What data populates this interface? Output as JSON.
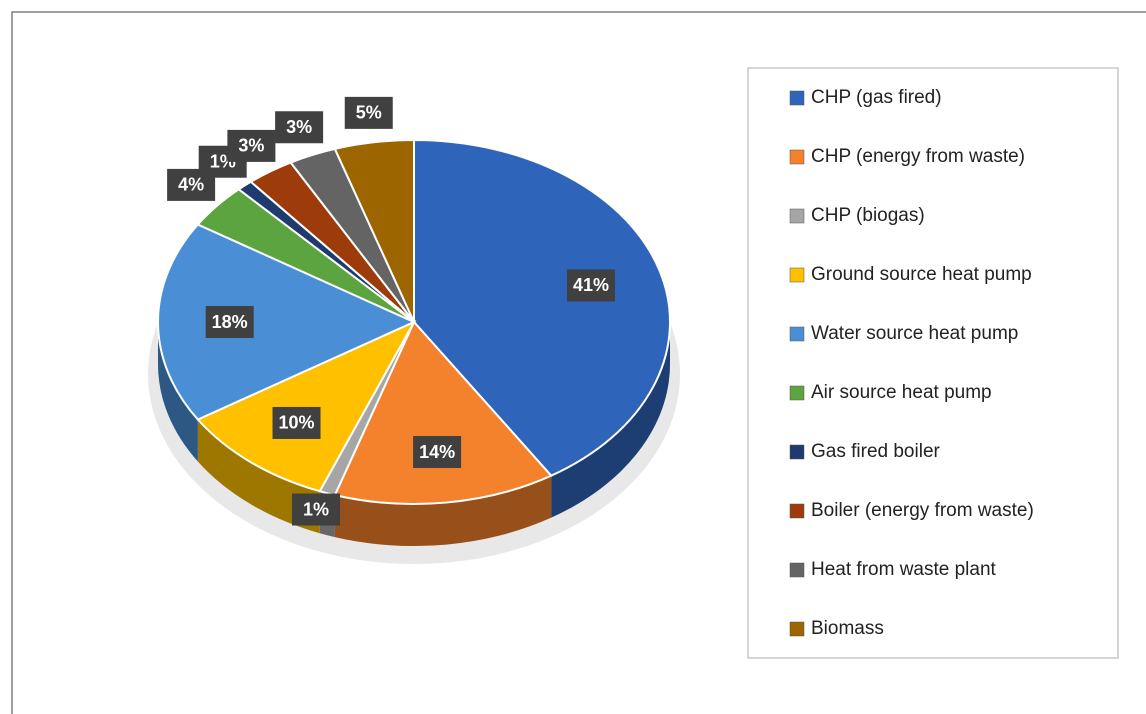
{
  "chart_data": {
    "type": "pie",
    "categories": [
      "CHP (gas fired)",
      "CHP (energy from waste)",
      "CHP (biogas)",
      "Ground source heat pump",
      "Water source heat pump",
      "Air source heat pump",
      "Gas fired boiler",
      "Boiler (energy from waste)",
      "Heat from waste plant",
      "Biomass"
    ],
    "values": [
      41,
      14,
      1,
      10,
      18,
      4,
      1,
      3,
      3,
      5
    ],
    "value_labels": [
      "41%",
      "14%",
      "1%",
      "10%",
      "18%",
      "4%",
      "1%",
      "3%",
      "3%",
      "5%"
    ],
    "colors": [
      "#2e64b9",
      "#f4812b",
      "#a6a6a6",
      "#ffc000",
      "#4a8fd6",
      "#5ba43f",
      "#1f3a6e",
      "#9e3b0b",
      "#646464",
      "#9c6500"
    ]
  }
}
